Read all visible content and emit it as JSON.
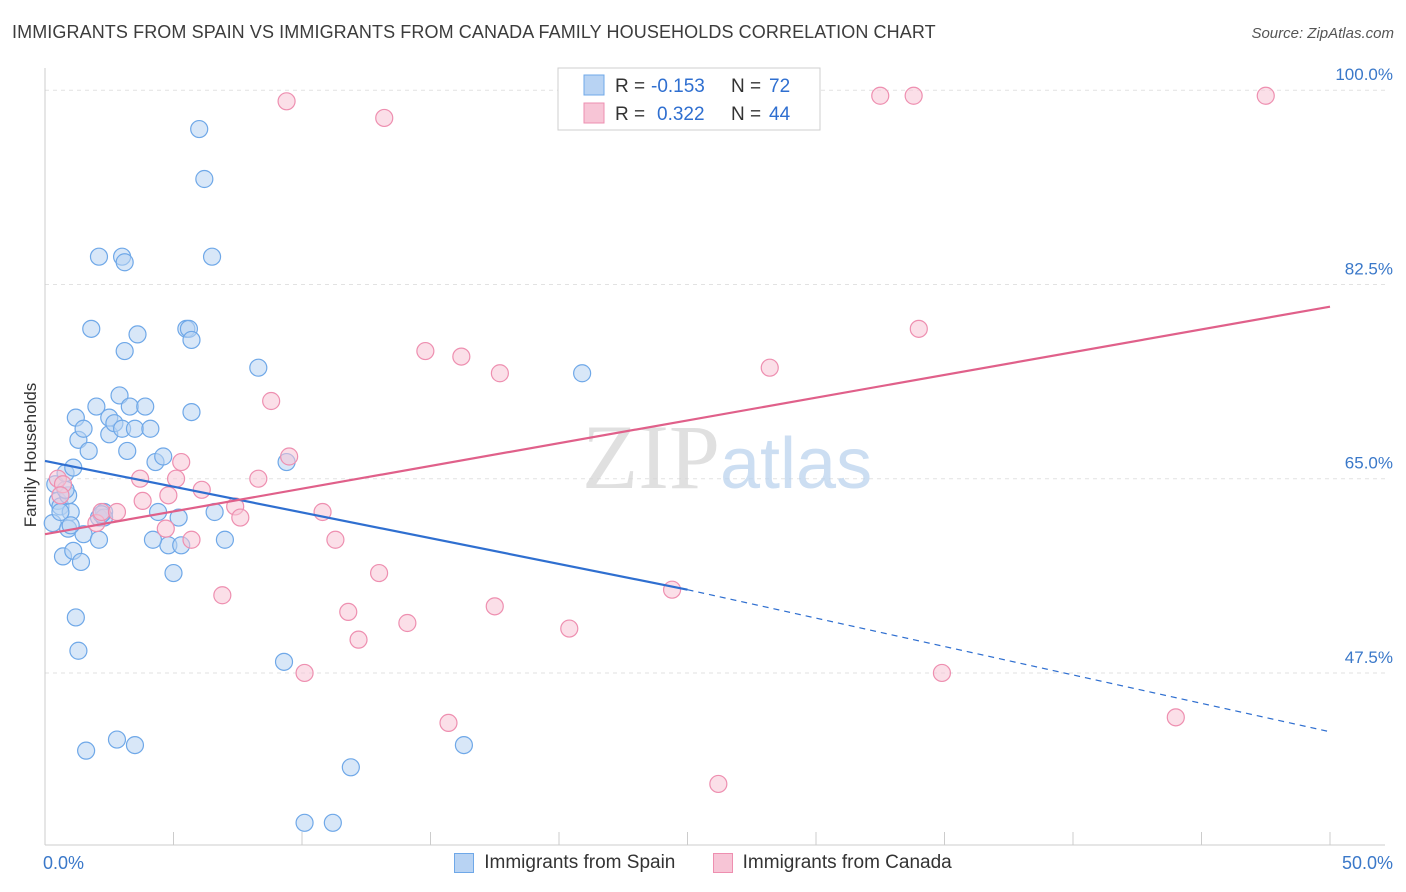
{
  "chart_data": {
    "type": "scatter",
    "title": "IMMIGRANTS FROM SPAIN VS IMMIGRANTS FROM CANADA FAMILY HOUSEHOLDS CORRELATION CHART",
    "source": "Source: ZipAtlas.com",
    "xlabel": "",
    "ylabel": "Family Households",
    "xlim": [
      0,
      50
    ],
    "ylim": [
      32,
      102
    ],
    "x_tick_labels": [
      "0.0%",
      "50.0%"
    ],
    "y_ticks": [
      {
        "value": 47.5,
        "label": "47.5%"
      },
      {
        "value": 65.0,
        "label": "65.0%"
      },
      {
        "value": 82.5,
        "label": "82.5%"
      },
      {
        "value": 100.0,
        "label": "100.0%"
      }
    ],
    "grid": true,
    "watermark": "ZIPatlas",
    "legend_stats": [
      {
        "r_label": "R =",
        "r_value": "-0.153",
        "n_label": "N =",
        "n_value": "72"
      },
      {
        "r_label": "R =",
        "r_value": "0.322",
        "n_label": "N =",
        "n_value": "44"
      }
    ],
    "series": [
      {
        "name": "Immigrants from Spain",
        "color": "#6fa8e8",
        "fill": "#b8d3f3",
        "line_color": "#2f6fd0",
        "trend": {
          "x0": 0.0,
          "y0": 66.6,
          "x1": 25.0,
          "y1": 55.0,
          "x_end": 50.0,
          "y_end": 42.2
        },
        "points": [
          {
            "x": 0.3,
            "y": 61.0
          },
          {
            "x": 0.4,
            "y": 64.5
          },
          {
            "x": 0.5,
            "y": 63.0
          },
          {
            "x": 0.6,
            "y": 62.5
          },
          {
            "x": 0.7,
            "y": 58.0
          },
          {
            "x": 0.8,
            "y": 65.5
          },
          {
            "x": 0.9,
            "y": 60.5
          },
          {
            "x": 1.0,
            "y": 62.0
          },
          {
            "x": 1.1,
            "y": 66.0
          },
          {
            "x": 1.2,
            "y": 70.5
          },
          {
            "x": 1.3,
            "y": 68.5
          },
          {
            "x": 1.1,
            "y": 58.5
          },
          {
            "x": 1.2,
            "y": 52.5
          },
          {
            "x": 1.3,
            "y": 49.5
          },
          {
            "x": 1.5,
            "y": 69.5
          },
          {
            "x": 1.7,
            "y": 67.5
          },
          {
            "x": 1.5,
            "y": 60.0
          },
          {
            "x": 1.8,
            "y": 78.5
          },
          {
            "x": 1.6,
            "y": 40.5
          },
          {
            "x": 2.0,
            "y": 71.5
          },
          {
            "x": 2.1,
            "y": 61.5
          },
          {
            "x": 2.3,
            "y": 62.0
          },
          {
            "x": 2.5,
            "y": 69.0
          },
          {
            "x": 2.5,
            "y": 70.5
          },
          {
            "x": 2.7,
            "y": 70.0
          },
          {
            "x": 2.9,
            "y": 72.5
          },
          {
            "x": 2.1,
            "y": 59.5
          },
          {
            "x": 2.3,
            "y": 61.5
          },
          {
            "x": 3.0,
            "y": 69.5
          },
          {
            "x": 3.1,
            "y": 76.5
          },
          {
            "x": 3.2,
            "y": 67.5
          },
          {
            "x": 3.5,
            "y": 69.5
          },
          {
            "x": 2.8,
            "y": 41.5
          },
          {
            "x": 3.3,
            "y": 71.5
          },
          {
            "x": 3.6,
            "y": 78.0
          },
          {
            "x": 3.9,
            "y": 71.5
          },
          {
            "x": 4.1,
            "y": 69.5
          },
          {
            "x": 3.5,
            "y": 41.0
          },
          {
            "x": 4.3,
            "y": 66.5
          },
          {
            "x": 4.4,
            "y": 62.0
          },
          {
            "x": 4.6,
            "y": 67.0
          },
          {
            "x": 4.8,
            "y": 59.0
          },
          {
            "x": 5.0,
            "y": 56.5
          },
          {
            "x": 5.2,
            "y": 61.5
          },
          {
            "x": 5.3,
            "y": 59.0
          },
          {
            "x": 5.5,
            "y": 78.5
          },
          {
            "x": 5.6,
            "y": 78.5
          },
          {
            "x": 5.7,
            "y": 77.5
          },
          {
            "x": 5.7,
            "y": 71.0
          },
          {
            "x": 6.0,
            "y": 96.5
          },
          {
            "x": 6.2,
            "y": 92.0
          },
          {
            "x": 6.5,
            "y": 85.0
          },
          {
            "x": 6.6,
            "y": 62.0
          },
          {
            "x": 7.0,
            "y": 59.5
          },
          {
            "x": 2.1,
            "y": 85.0
          },
          {
            "x": 3.0,
            "y": 85.0
          },
          {
            "x": 3.1,
            "y": 84.5
          },
          {
            "x": 8.3,
            "y": 75.0
          },
          {
            "x": 9.4,
            "y": 66.5
          },
          {
            "x": 9.3,
            "y": 48.5
          },
          {
            "x": 10.1,
            "y": 34.0
          },
          {
            "x": 11.2,
            "y": 34.0
          },
          {
            "x": 11.9,
            "y": 39.0
          },
          {
            "x": 16.3,
            "y": 41.0
          },
          {
            "x": 20.9,
            "y": 74.5
          },
          {
            "x": 0.6,
            "y": 62.0
          },
          {
            "x": 1.4,
            "y": 57.5
          },
          {
            "x": 0.9,
            "y": 63.5
          },
          {
            "x": 4.2,
            "y": 59.5
          },
          {
            "x": 2.2,
            "y": 61.8
          },
          {
            "x": 0.8,
            "y": 64.0
          },
          {
            "x": 1.0,
            "y": 60.8
          }
        ]
      },
      {
        "name": "Immigrants from Canada",
        "color": "#ee8fb0",
        "fill": "#f7c5d6",
        "line_color": "#e0608a",
        "trend": {
          "x0": 0.0,
          "y0": 60.0,
          "x1": 50.0,
          "y1": 80.5
        },
        "points": [
          {
            "x": 0.5,
            "y": 65.0
          },
          {
            "x": 0.7,
            "y": 64.5
          },
          {
            "x": 0.6,
            "y": 63.5
          },
          {
            "x": 2.0,
            "y": 61.0
          },
          {
            "x": 2.2,
            "y": 62.0
          },
          {
            "x": 2.8,
            "y": 62.0
          },
          {
            "x": 3.7,
            "y": 65.0
          },
          {
            "x": 3.8,
            "y": 63.0
          },
          {
            "x": 4.7,
            "y": 60.5
          },
          {
            "x": 4.8,
            "y": 63.5
          },
          {
            "x": 5.1,
            "y": 65.0
          },
          {
            "x": 5.3,
            "y": 66.5
          },
          {
            "x": 5.7,
            "y": 59.5
          },
          {
            "x": 6.1,
            "y": 64.0
          },
          {
            "x": 6.9,
            "y": 54.5
          },
          {
            "x": 7.4,
            "y": 62.5
          },
          {
            "x": 7.6,
            "y": 61.5
          },
          {
            "x": 8.3,
            "y": 65.0
          },
          {
            "x": 8.8,
            "y": 72.0
          },
          {
            "x": 9.5,
            "y": 67.0
          },
          {
            "x": 9.4,
            "y": 99.0
          },
          {
            "x": 10.1,
            "y": 47.5
          },
          {
            "x": 10.8,
            "y": 62.0
          },
          {
            "x": 11.3,
            "y": 59.5
          },
          {
            "x": 11.8,
            "y": 53.0
          },
          {
            "x": 12.2,
            "y": 50.5
          },
          {
            "x": 13.0,
            "y": 56.5
          },
          {
            "x": 13.2,
            "y": 97.5
          },
          {
            "x": 14.1,
            "y": 52.0
          },
          {
            "x": 14.8,
            "y": 76.5
          },
          {
            "x": 15.7,
            "y": 43.0
          },
          {
            "x": 16.2,
            "y": 76.0
          },
          {
            "x": 17.5,
            "y": 53.5
          },
          {
            "x": 17.7,
            "y": 74.5
          },
          {
            "x": 20.4,
            "y": 51.5
          },
          {
            "x": 24.4,
            "y": 55.0
          },
          {
            "x": 26.2,
            "y": 37.5
          },
          {
            "x": 28.2,
            "y": 75.0
          },
          {
            "x": 32.5,
            "y": 99.5
          },
          {
            "x": 33.8,
            "y": 99.5
          },
          {
            "x": 34.0,
            "y": 78.5
          },
          {
            "x": 34.9,
            "y": 47.5
          },
          {
            "x": 44.0,
            "y": 43.5
          },
          {
            "x": 47.5,
            "y": 99.5
          }
        ]
      }
    ]
  }
}
